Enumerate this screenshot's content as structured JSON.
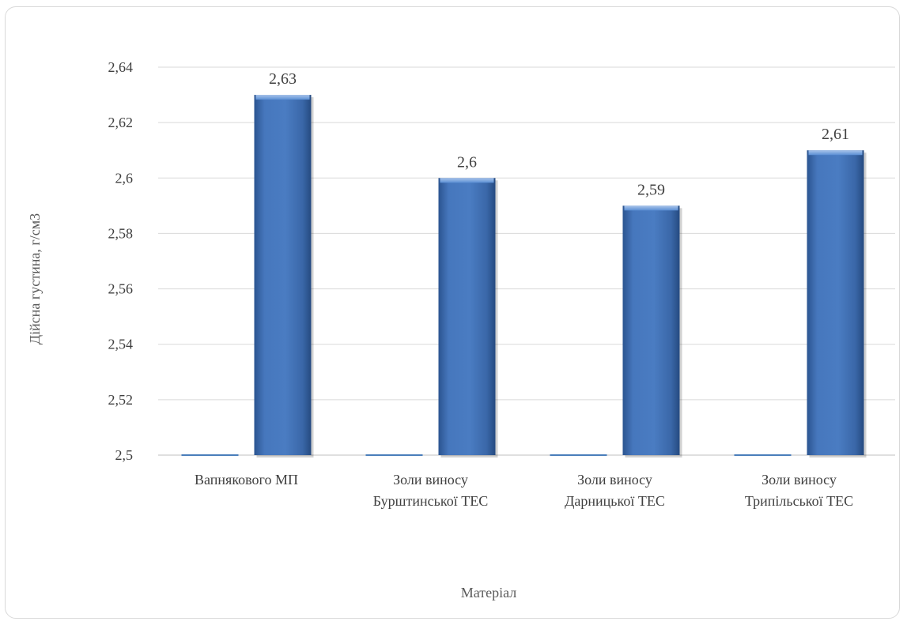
{
  "chart_data": {
    "type": "bar",
    "categories": [
      [
        "Вапнякового МП"
      ],
      [
        "Золи виносу",
        "Бурштинської ТЕС"
      ],
      [
        "Золи виносу",
        "Дарницької ТЕС"
      ],
      [
        "Золи виносу",
        "Трипільської ТЕС"
      ]
    ],
    "series": [
      {
        "values": [
          2.5,
          2.5,
          2.5,
          2.5
        ],
        "color": "#4a7ebb"
      },
      {
        "values": [
          2.63,
          2.6,
          2.59,
          2.61
        ],
        "color": "#3d6db5"
      }
    ],
    "data_labels": [
      "2,63",
      "2,6",
      "2,59",
      "2,61"
    ],
    "ylim": [
      2.5,
      2.64
    ],
    "yticks": [
      2.5,
      2.52,
      2.54,
      2.56,
      2.58,
      2.6,
      2.62,
      2.64
    ],
    "ytick_labels": [
      "2,5",
      "2,52",
      "2,54",
      "2,56",
      "2,58",
      "2,6",
      "2,62",
      "2,64"
    ],
    "xlabel": "Матеріал",
    "ylabel": "Дійсна густина, г/см3",
    "grid": true
  }
}
